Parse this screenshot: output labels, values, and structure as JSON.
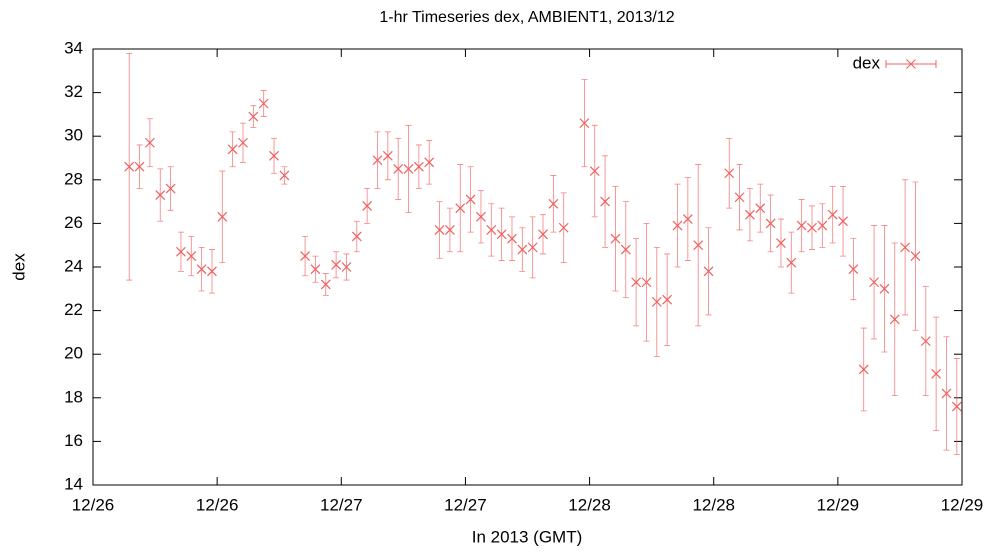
{
  "chart_data": {
    "type": "errorbar",
    "title": "1-hr Timeseries dex, AMBIENT1, 2013/12",
    "xlabel": "In 2013 (GMT)",
    "ylabel": "dex",
    "xlim": [
      0,
      84
    ],
    "xticks": [
      {
        "value": 0,
        "label": "12/26"
      },
      {
        "value": 12,
        "label": "12/26"
      },
      {
        "value": 24,
        "label": "12/27"
      },
      {
        "value": 36,
        "label": "12/27"
      },
      {
        "value": 48,
        "label": "12/28"
      },
      {
        "value": 60,
        "label": "12/28"
      },
      {
        "value": 72,
        "label": "12/29"
      },
      {
        "value": 84,
        "label": "12/29"
      }
    ],
    "ylim": [
      14,
      34
    ],
    "yticks": [
      14,
      16,
      18,
      20,
      22,
      24,
      26,
      28,
      30,
      32,
      34
    ],
    "grid": false,
    "legend": "upper right",
    "series": [
      {
        "name": "dex",
        "color": "#f06060",
        "x": [
          3.5,
          4.5,
          5.5,
          6.5,
          7.5,
          8.5,
          9.5,
          10.5,
          11.5,
          12.5,
          13.5,
          14.5,
          15.5,
          16.5,
          17.5,
          18.5,
          20.5,
          21.5,
          22.5,
          23.5,
          24.5,
          25.5,
          26.5,
          27.5,
          28.5,
          29.5,
          30.5,
          31.5,
          32.5,
          33.5,
          34.5,
          35.5,
          36.5,
          37.5,
          38.5,
          39.5,
          40.5,
          41.5,
          42.5,
          43.5,
          44.5,
          45.5,
          47.5,
          48.5,
          49.5,
          50.5,
          51.5,
          52.5,
          53.5,
          54.5,
          55.5,
          56.5,
          57.5,
          58.5,
          59.5,
          61.5,
          62.5,
          63.5,
          64.5,
          65.5,
          66.5,
          67.5,
          68.5,
          69.5,
          70.5,
          71.5,
          72.5,
          73.5,
          74.5,
          75.5,
          76.5,
          77.5,
          78.5,
          79.5,
          80.5,
          81.5,
          82.5,
          83.5
        ],
        "values": [
          28.6,
          28.6,
          29.7,
          27.3,
          27.6,
          24.7,
          24.5,
          23.9,
          23.8,
          26.3,
          29.4,
          29.7,
          30.9,
          31.5,
          29.1,
          28.2,
          24.5,
          23.9,
          23.2,
          24.1,
          24.0,
          25.4,
          26.8,
          28.9,
          29.1,
          28.5,
          28.5,
          28.6,
          28.8,
          25.7,
          25.7,
          26.7,
          27.1,
          26.3,
          25.7,
          25.5,
          25.3,
          24.8,
          24.9,
          25.5,
          26.9,
          25.8,
          30.6,
          28.4,
          27.0,
          25.3,
          24.8,
          23.3,
          23.3,
          22.4,
          22.5,
          25.9,
          26.2,
          25.0,
          23.8,
          28.3,
          27.2,
          26.4,
          26.7,
          26.0,
          25.1,
          24.2,
          25.9,
          25.8,
          25.9,
          26.4,
          26.1,
          23.9,
          19.3,
          23.3,
          23.0,
          21.6,
          24.9,
          24.5,
          20.6,
          19.1,
          18.2,
          17.6
        ],
        "errors": [
          5.2,
          1.0,
          1.1,
          1.2,
          1.0,
          0.9,
          0.9,
          1.0,
          1.0,
          2.1,
          0.8,
          0.9,
          0.5,
          0.6,
          0.8,
          0.4,
          0.9,
          0.6,
          0.5,
          0.6,
          0.6,
          0.7,
          0.8,
          1.3,
          1.1,
          1.4,
          2.0,
          1.0,
          1.0,
          1.3,
          1.0,
          2.0,
          1.5,
          1.2,
          1.2,
          1.2,
          1.0,
          1.0,
          1.4,
          0.9,
          1.3,
          1.6,
          2.0,
          2.1,
          2.1,
          2.4,
          2.2,
          2.0,
          2.7,
          2.5,
          2.1,
          1.9,
          1.9,
          3.7,
          2.0,
          1.6,
          1.5,
          1.2,
          1.1,
          1.3,
          1.1,
          1.4,
          1.2,
          1.0,
          1.0,
          1.3,
          1.6,
          1.4,
          1.9,
          2.6,
          2.9,
          3.5,
          3.1,
          3.4,
          2.5,
          2.6,
          2.6,
          2.2
        ]
      }
    ]
  }
}
